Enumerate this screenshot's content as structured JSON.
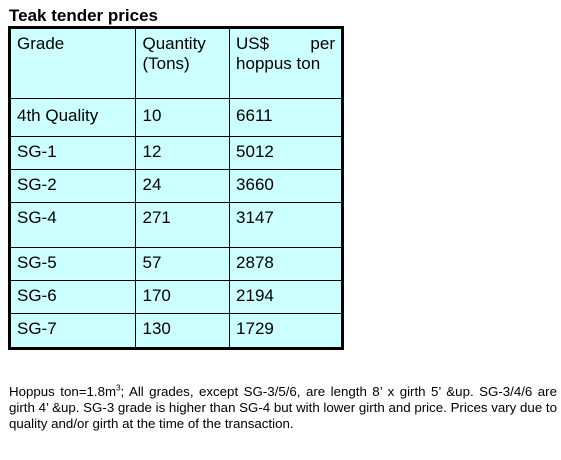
{
  "title": "Teak tender prices",
  "table": {
    "headers": {
      "grade": "Grade",
      "quantity": "Quantity (Tons)",
      "price_word1": "US$",
      "price_word2": "per",
      "price_rest": "hoppus ton"
    },
    "rows": [
      {
        "grade": "4th Quality",
        "quantity": "10",
        "price": "6611"
      },
      {
        "grade": "SG-1",
        "quantity": "12",
        "price": "5012"
      },
      {
        "grade": "SG-2",
        "quantity": "24",
        "price": "3660"
      },
      {
        "grade": "SG-4",
        "quantity": "271",
        "price": "3147"
      },
      {
        "grade": "SG-5",
        "quantity": "57",
        "price": "2878"
      },
      {
        "grade": "SG-6",
        "quantity": "170",
        "price": "2194"
      },
      {
        "grade": "SG-7",
        "quantity": "130",
        "price": "1729"
      }
    ],
    "background_color": "#ccffff"
  },
  "note": {
    "prefix": "Hoppus ton=1.8m",
    "superscript": "3",
    "text": "; All grades, except SG-3/5/6, are length 8’ x girth 5’ &up. SG-3/4/6 are girth 4’ &up. SG-3 grade is higher than SG-4 but with lower girth and price. Prices vary due to quality and/or girth at the time of the transaction."
  }
}
